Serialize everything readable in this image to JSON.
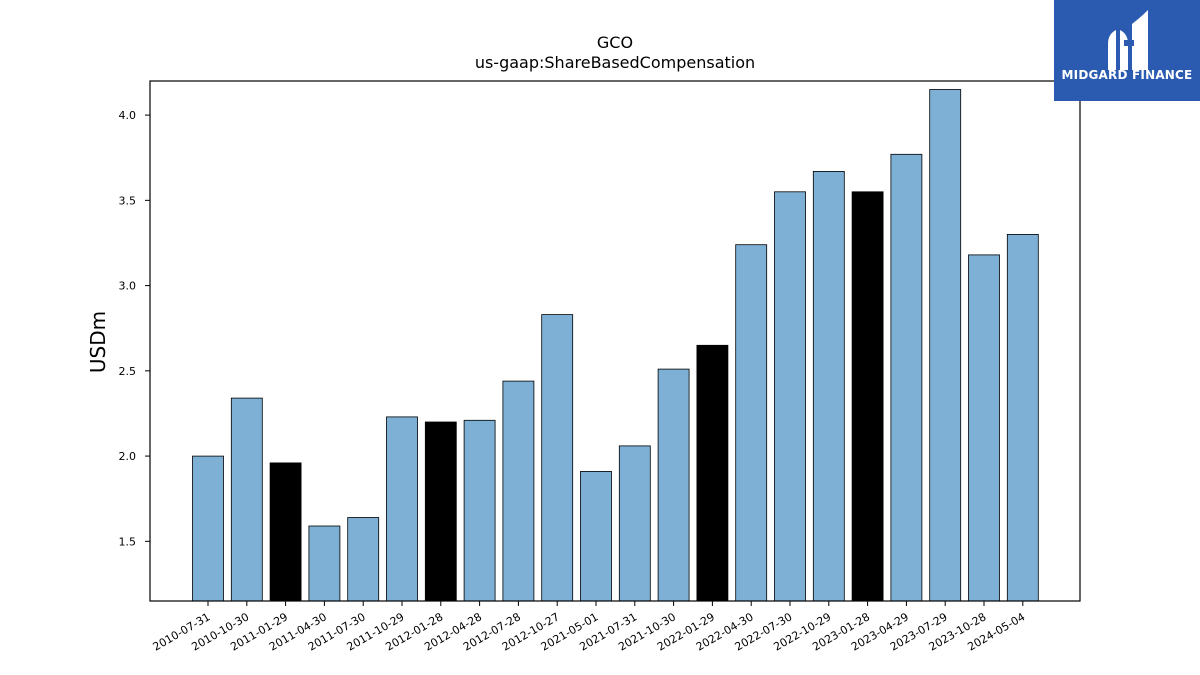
{
  "chart_data": {
    "type": "bar",
    "title": "GCO",
    "subtitle": "us-gaap:ShareBasedCompensation",
    "xlabel": "",
    "ylabel": "USDm",
    "ylim": [
      1.15,
      4.2
    ],
    "yticks": [
      1.5,
      2.0,
      2.5,
      3.0,
      3.5,
      4.0
    ],
    "ytick_labels": [
      "1.5",
      "2.0",
      "2.5",
      "3.0",
      "3.5",
      "4.0"
    ],
    "categories": [
      "2010-07-31",
      "2010-10-30",
      "2011-01-29",
      "2011-04-30",
      "2011-07-30",
      "2011-10-29",
      "2012-01-28",
      "2012-04-28",
      "2012-07-28",
      "2012-10-27",
      "2021-05-01",
      "2021-07-31",
      "2021-10-30",
      "2022-01-29",
      "2022-04-30",
      "2022-07-30",
      "2022-10-29",
      "2023-01-28",
      "2023-04-29",
      "2023-07-29",
      "2023-10-28",
      "2024-05-04"
    ],
    "values": [
      2.0,
      2.34,
      1.96,
      1.59,
      1.64,
      2.23,
      2.2,
      2.21,
      2.44,
      2.83,
      1.91,
      2.06,
      2.51,
      2.65,
      3.24,
      3.55,
      3.67,
      3.55,
      3.77,
      4.15,
      3.18,
      3.3
    ],
    "highlight": [
      false,
      false,
      true,
      false,
      false,
      false,
      true,
      false,
      false,
      false,
      false,
      false,
      false,
      true,
      false,
      false,
      false,
      true,
      false,
      false,
      false,
      false
    ],
    "colors": {
      "bar": "#7eb0d5",
      "highlight": "#000000",
      "edge": "#000000"
    },
    "grid": false
  },
  "logo": {
    "text": "MIDGARD FINANCE",
    "background": "#2b5bb0"
  }
}
